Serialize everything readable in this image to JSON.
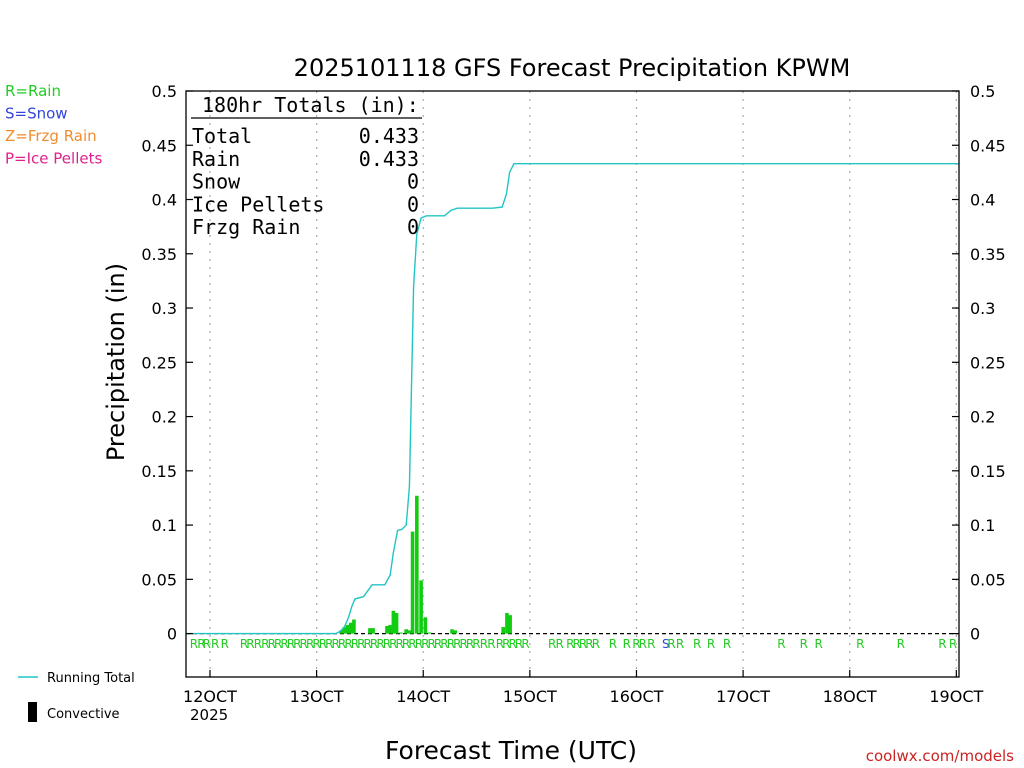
{
  "chart_data": {
    "type": "bar",
    "title": "2025101118 GFS Forecast Precipitation KPWM",
    "xlabel": "Forecast Time (UTC)",
    "ylabel": "Precipitation (in)",
    "credit": "coolwx.com/models",
    "year_label": "2025",
    "ylim": [
      -0.04,
      0.5
    ],
    "xlim": [
      119.75,
      192.25
    ],
    "y_ticks": [
      {
        "value": 0,
        "label": "0"
      },
      {
        "value": 0.05,
        "label": "0.05"
      },
      {
        "value": 0.1,
        "label": "0.1"
      },
      {
        "value": 0.15,
        "label": "0.15"
      },
      {
        "value": 0.2,
        "label": "0.2"
      },
      {
        "value": 0.25,
        "label": "0.25"
      },
      {
        "value": 0.3,
        "label": "0.3"
      },
      {
        "value": 0.35,
        "label": "0.35"
      },
      {
        "value": 0.4,
        "label": "0.4"
      },
      {
        "value": 0.45,
        "label": "0.45"
      },
      {
        "value": 0.5,
        "label": "0.5"
      }
    ],
    "x_ticks": [
      {
        "value": 122,
        "label": "12OCT"
      },
      {
        "value": 132,
        "label": "13OCT"
      },
      {
        "value": 142,
        "label": "14OCT"
      },
      {
        "value": 152,
        "label": "15OCT"
      },
      {
        "value": 162,
        "label": "16OCT"
      },
      {
        "value": 172,
        "label": "17OCT"
      },
      {
        "value": 182,
        "label": "18OCT"
      },
      {
        "value": 192,
        "label": "19OCT"
      }
    ],
    "precip_type_legend": [
      {
        "code": "R",
        "text": "R=Rain",
        "color": "#22cc22"
      },
      {
        "code": "S",
        "text": "S=Snow",
        "color": "#3344dd"
      },
      {
        "code": "Z",
        "text": "Z=Frzg Rain",
        "color": "#f08c30"
      },
      {
        "code": "P",
        "text": "P=Ice Pellets",
        "color": "#e0208c"
      }
    ],
    "totals": {
      "header": "180hr Totals (in):",
      "rows": [
        {
          "label": "Total",
          "value": "0.433"
        },
        {
          "label": "Rain",
          "value": "0.433"
        },
        {
          "label": "Snow",
          "value": "0"
        },
        {
          "label": "Ice Pellets",
          "value": "0"
        },
        {
          "label": "Frzg Rain",
          "value": "0"
        }
      ]
    },
    "series_legend": [
      {
        "name": "Running Total",
        "kind": "line",
        "color": "#22c4c4"
      },
      {
        "name": "Convective",
        "kind": "bar",
        "color": "#000000"
      }
    ],
    "bar_color": "#11cc11",
    "bars": [
      {
        "x": 134.3,
        "value": 0.003
      },
      {
        "x": 134.6,
        "value": 0.006
      },
      {
        "x": 134.9,
        "value": 0.008
      },
      {
        "x": 135.2,
        "value": 0.01
      },
      {
        "x": 135.5,
        "value": 0.013
      },
      {
        "x": 137.0,
        "value": 0.005
      },
      {
        "x": 137.3,
        "value": 0.005
      },
      {
        "x": 138.6,
        "value": 0.007
      },
      {
        "x": 138.9,
        "value": 0.008
      },
      {
        "x": 139.2,
        "value": 0.021
      },
      {
        "x": 139.5,
        "value": 0.019
      },
      {
        "x": 139.9,
        "value": 0.001
      },
      {
        "x": 140.4,
        "value": 0.004
      },
      {
        "x": 140.7,
        "value": 0.003
      },
      {
        "x": 141.0,
        "value": 0.094
      },
      {
        "x": 141.4,
        "value": 0.127
      },
      {
        "x": 141.8,
        "value": 0.049
      },
      {
        "x": 142.2,
        "value": 0.015
      },
      {
        "x": 142.6,
        "value": 0.001
      },
      {
        "x": 144.7,
        "value": 0.004
      },
      {
        "x": 145.0,
        "value": 0.003
      },
      {
        "x": 149.5,
        "value": 0.006
      },
      {
        "x": 149.85,
        "value": 0.019
      },
      {
        "x": 150.15,
        "value": 0.017
      }
    ],
    "running_total": {
      "x": [
        119.75,
        133.8,
        134.2,
        134.6,
        135.0,
        135.3,
        135.6,
        136.4,
        137.2,
        138.4,
        138.9,
        139.2,
        139.6,
        140.0,
        140.4,
        140.7,
        141.1,
        141.4,
        141.8,
        142.3,
        143.0,
        144.0,
        144.6,
        145.2,
        147.0,
        148.5,
        149.4,
        149.8,
        150.1,
        150.5,
        192.25
      ],
      "y": [
        0,
        0,
        0.002,
        0.006,
        0.015,
        0.025,
        0.032,
        0.034,
        0.045,
        0.045,
        0.054,
        0.075,
        0.095,
        0.096,
        0.1,
        0.135,
        0.32,
        0.368,
        0.383,
        0.385,
        0.385,
        0.385,
        0.39,
        0.392,
        0.392,
        0.392,
        0.393,
        0.405,
        0.425,
        0.433,
        0.433
      ]
    },
    "type_markers": [
      {
        "x": 120.1,
        "code": "R"
      },
      {
        "x": 120.8,
        "code": "R"
      },
      {
        "x": 121.3,
        "code": "R"
      },
      {
        "x": 122.1,
        "code": "R"
      },
      {
        "x": 123.0,
        "code": "R"
      },
      {
        "x": 124.8,
        "code": "R"
      },
      {
        "x": 125.4,
        "code": "R"
      },
      {
        "x": 126.1,
        "code": "R"
      },
      {
        "x": 126.8,
        "code": "R"
      },
      {
        "x": 127.4,
        "code": "R"
      },
      {
        "x": 128.0,
        "code": "R"
      },
      {
        "x": 128.6,
        "code": "R"
      },
      {
        "x": 129.2,
        "code": "R"
      },
      {
        "x": 129.8,
        "code": "R"
      },
      {
        "x": 130.4,
        "code": "R"
      },
      {
        "x": 131.0,
        "code": "R"
      },
      {
        "x": 131.6,
        "code": "R"
      },
      {
        "x": 132.2,
        "code": "R"
      },
      {
        "x": 132.8,
        "code": "R"
      },
      {
        "x": 133.4,
        "code": "R"
      },
      {
        "x": 134.0,
        "code": "R"
      },
      {
        "x": 134.6,
        "code": "R"
      },
      {
        "x": 135.2,
        "code": "R"
      },
      {
        "x": 135.8,
        "code": "R"
      },
      {
        "x": 136.4,
        "code": "R"
      },
      {
        "x": 137.0,
        "code": "R"
      },
      {
        "x": 137.6,
        "code": "R"
      },
      {
        "x": 138.2,
        "code": "R"
      },
      {
        "x": 138.8,
        "code": "R"
      },
      {
        "x": 139.4,
        "code": "R"
      },
      {
        "x": 140.0,
        "code": "R"
      },
      {
        "x": 140.6,
        "code": "R"
      },
      {
        "x": 141.2,
        "code": "R"
      },
      {
        "x": 141.8,
        "code": "R"
      },
      {
        "x": 142.4,
        "code": "R"
      },
      {
        "x": 143.0,
        "code": "R"
      },
      {
        "x": 143.6,
        "code": "R"
      },
      {
        "x": 144.2,
        "code": "R"
      },
      {
        "x": 144.8,
        "code": "R"
      },
      {
        "x": 145.4,
        "code": "R"
      },
      {
        "x": 146.0,
        "code": "R"
      },
      {
        "x": 146.6,
        "code": "R"
      },
      {
        "x": 147.3,
        "code": "R"
      },
      {
        "x": 148.0,
        "code": "R"
      },
      {
        "x": 148.8,
        "code": "R"
      },
      {
        "x": 149.4,
        "code": "R"
      },
      {
        "x": 150.0,
        "code": "R"
      },
      {
        "x": 150.6,
        "code": "R"
      },
      {
        "x": 151.2,
        "code": "R"
      },
      {
        "x": 153.7,
        "code": "R"
      },
      {
        "x": 154.4,
        "code": "R"
      },
      {
        "x": 155.4,
        "code": "R"
      },
      {
        "x": 156.0,
        "code": "R"
      },
      {
        "x": 156.6,
        "code": "R"
      },
      {
        "x": 157.2,
        "code": "R"
      },
      {
        "x": 157.8,
        "code": "R"
      },
      {
        "x": 159.4,
        "code": "R"
      },
      {
        "x": 160.7,
        "code": "R"
      },
      {
        "x": 161.6,
        "code": "R"
      },
      {
        "x": 162.2,
        "code": "R"
      },
      {
        "x": 163.0,
        "code": "R"
      },
      {
        "x": 164.4,
        "code": "S"
      },
      {
        "x": 164.9,
        "code": "R"
      },
      {
        "x": 165.7,
        "code": "R"
      },
      {
        "x": 167.3,
        "code": "R"
      },
      {
        "x": 168.6,
        "code": "R"
      },
      {
        "x": 170.1,
        "code": "R"
      },
      {
        "x": 175.2,
        "code": "R"
      },
      {
        "x": 177.3,
        "code": "R"
      },
      {
        "x": 178.7,
        "code": "R"
      },
      {
        "x": 182.6,
        "code": "R"
      },
      {
        "x": 186.4,
        "code": "R"
      },
      {
        "x": 190.3,
        "code": "R"
      },
      {
        "x": 191.3,
        "code": "R"
      }
    ]
  }
}
